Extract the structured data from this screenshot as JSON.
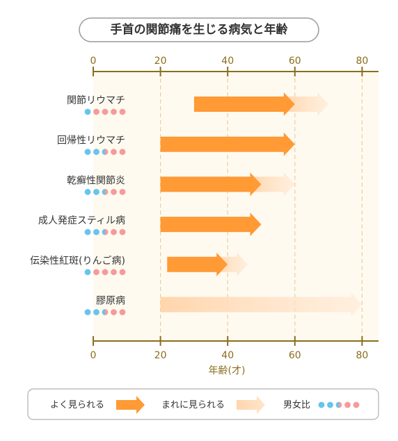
{
  "chart_data": {
    "type": "bar",
    "title": "手首の関節痛を生じる病気と年齢",
    "xlabel": "年齢(才)",
    "xlim": [
      0,
      85
    ],
    "ticks": [
      "0",
      "20",
      "40",
      "60",
      "80"
    ],
    "categories": [
      "関節リウマチ",
      "回帰性リウマチ",
      "乾癬性関節炎",
      "成人発症スティル病",
      "伝染性紅斑(りんご病)",
      "膠原病"
    ],
    "series": [
      {
        "name": "よく見られる",
        "ranges": [
          [
            30,
            60
          ],
          [
            20,
            60
          ],
          [
            20,
            50
          ],
          [
            20,
            50
          ],
          [
            22,
            40
          ],
          null
        ]
      },
      {
        "name": "まれに見られる",
        "ranges": [
          [
            60,
            70
          ],
          null,
          [
            50,
            60
          ],
          null,
          [
            40,
            46
          ],
          [
            20,
            80
          ]
        ]
      }
    ],
    "sex_ratio": [
      {
        "male": 1,
        "half": 0,
        "female": 4
      },
      {
        "male": 2,
        "half": 1,
        "female": 2
      },
      {
        "male": 2,
        "half": 1,
        "female": 2
      },
      {
        "male": 2,
        "half": 1,
        "female": 2
      },
      {
        "male": 1,
        "half": 0,
        "female": 4
      },
      {
        "male": 2,
        "half": 1,
        "female": 2
      }
    ]
  },
  "legend": {
    "common_label": "よく見られる",
    "rare_label": "まれに見られる",
    "ratio_label": "男女比"
  },
  "colors": {
    "common": "#ff9a35",
    "rare": "#ffd5ac",
    "male": "#66c4ee",
    "female": "#f79a9a",
    "axis": "#8a6d1c",
    "plot_bg": "#fffaf0",
    "grid": "#e8cfa0"
  }
}
